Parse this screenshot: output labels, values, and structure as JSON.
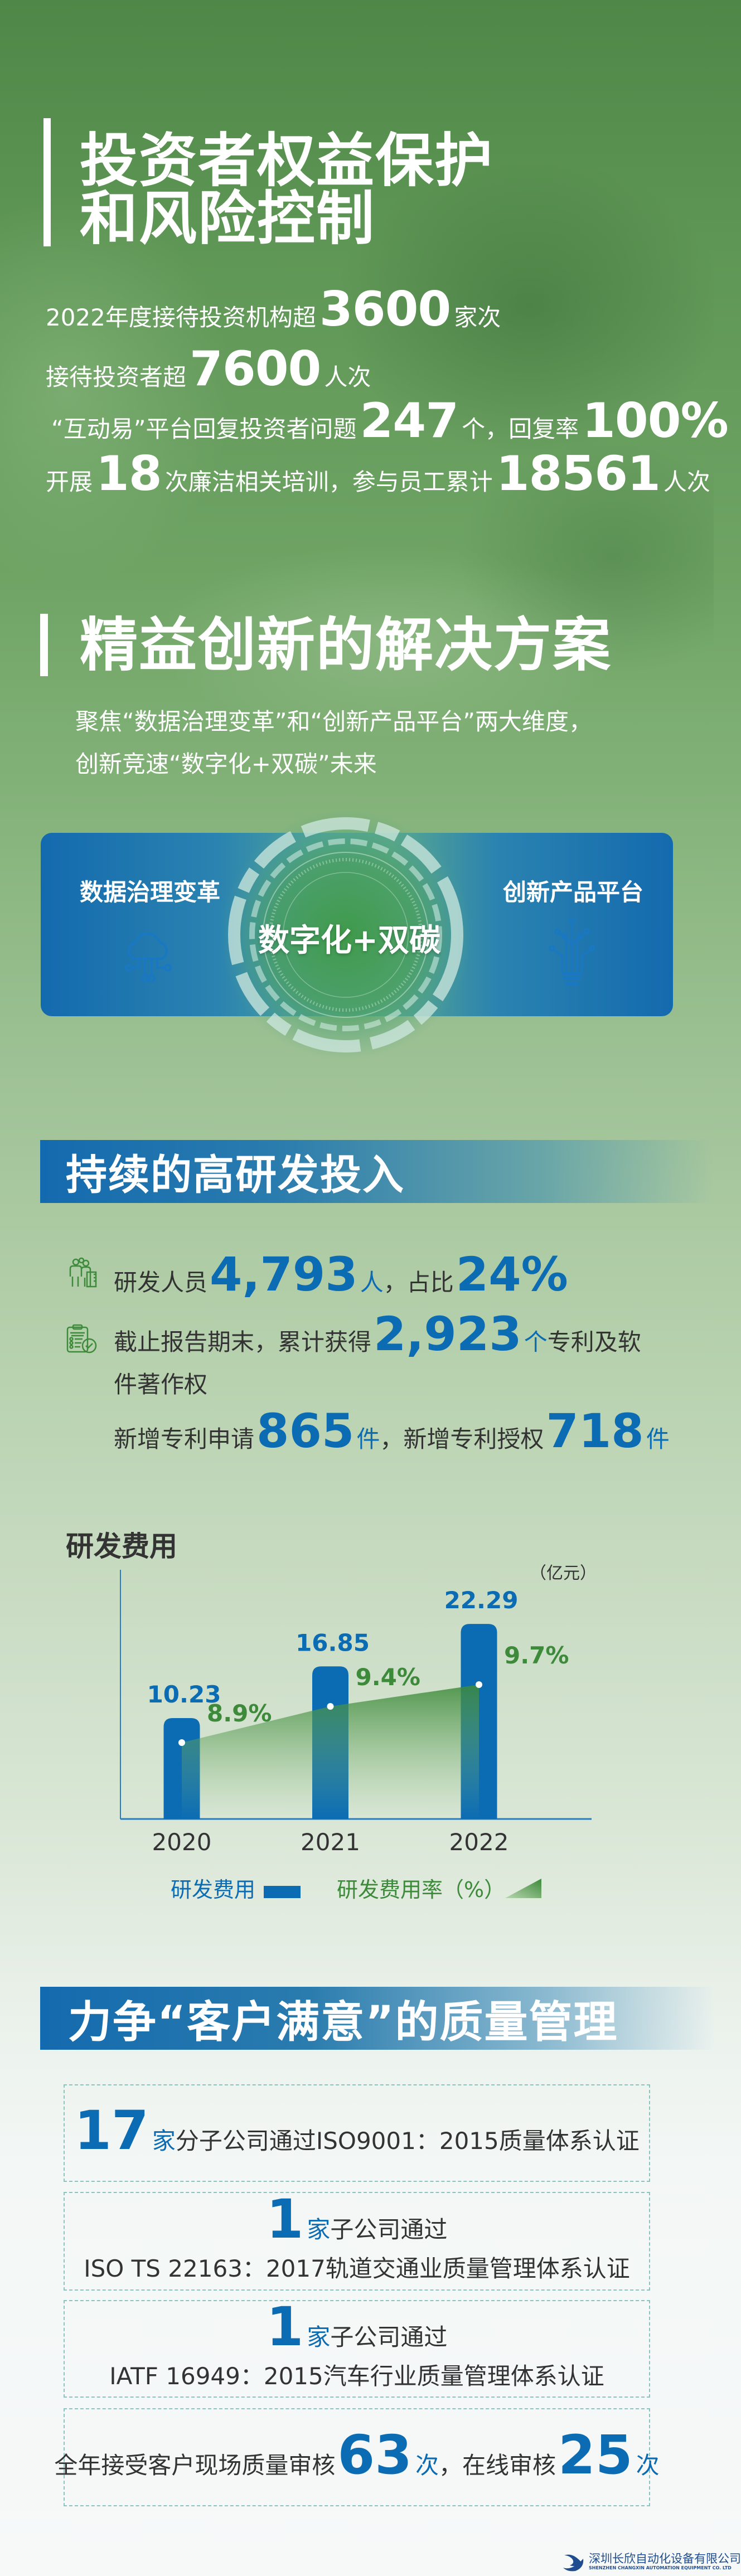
{
  "section1": {
    "title_line1": "投资者权益保护",
    "title_line2": "和风险控制",
    "stats": [
      {
        "pre": "2022年度接待投资机构超",
        "num": "3600",
        "post": "家次"
      },
      {
        "pre": "接待投资者超",
        "num": "7600",
        "post": "人次"
      },
      {
        "pre": "“互动易”平台回复投资者问题",
        "num": "247",
        "mid": "个，回复率",
        "num2": "100%"
      },
      {
        "pre": "开展",
        "num": "18",
        "mid": "次廉洁相关培训，参与员工累计",
        "num2": "18561",
        "post": "人次"
      }
    ]
  },
  "section2": {
    "title": "精益创新的解决方案",
    "subtitle_line1": "聚焦“数据治理变革”和“创新产品平台”两大维度，",
    "subtitle_line2": "创新竞速“数字化+双碳”未来",
    "left_label": "数据治理变革",
    "left_icon": "cloud-network-icon",
    "center_label": "数字化+双碳",
    "right_label": "创新产品平台",
    "right_icon": "circuit-lightbulb-icon"
  },
  "section3": {
    "title": "持续的高研发投入",
    "rows": [
      {
        "icon": "researchers-icon",
        "pre": "研发人员",
        "num": "4,793",
        "unit": "人",
        "mid": "，占比",
        "num2": "24%"
      },
      {
        "icon": "patent-clipboard-icon",
        "pre": "截止报告期末，累计获得",
        "num": "2,923",
        "unit": "个",
        "post": "专利及软",
        "cont": "件著作权"
      },
      {
        "pre": "新增专利申请",
        "num": "865",
        "unit": "件",
        "mid": "，新增专利授权",
        "num2": "718",
        "unit2": "件"
      }
    ]
  },
  "chart_data": {
    "type": "bar",
    "title": "研发费用",
    "unit": "（亿元）",
    "categories": [
      "2020",
      "2021",
      "2022"
    ],
    "series": [
      {
        "name": "研发费用",
        "type": "bar",
        "values": [
          10.23,
          16.85,
          22.29
        ],
        "labels": [
          "10.23",
          "16.85",
          "22.29"
        ],
        "color": "#0b6cb3"
      },
      {
        "name": "研发费用率（%）",
        "type": "area",
        "values": [
          8.9,
          9.4,
          9.7
        ],
        "labels": [
          "8.9%",
          "9.4%",
          "9.7%"
        ],
        "color": "#3d8a3a"
      }
    ],
    "grid": false,
    "legend": "bottom"
  },
  "section4": {
    "title": "力争“客户满意”的质量管理",
    "boxes": [
      {
        "num": "17",
        "unit": "家",
        "text": "分子公司通过ISO9001：2015质量体系认证"
      },
      {
        "num": "1",
        "unit": "家",
        "text": "子公司通过",
        "line2": "ISO TS 22163：2017轨道交通业质量管理体系认证"
      },
      {
        "num": "1",
        "unit": "家",
        "text": "子公司通过",
        "line2": "IATF 16949：2015汽车行业质量管理体系认证"
      },
      {
        "pre": "全年接受客户现场质量审核",
        "num": "63",
        "unit": "次",
        "mid": "，在线审核",
        "num2": "25",
        "unit2": "次"
      }
    ]
  },
  "footer": {
    "company_cn": "深圳长欣自动化设备有限公司",
    "company_en": "SHENZHEN CHANGXIN AUTOMATION EQUIPMENT CO. LTD"
  },
  "colors": {
    "blue": "#0b6cb3",
    "green": "#3d8a3a",
    "header_blue": "#146aae"
  }
}
